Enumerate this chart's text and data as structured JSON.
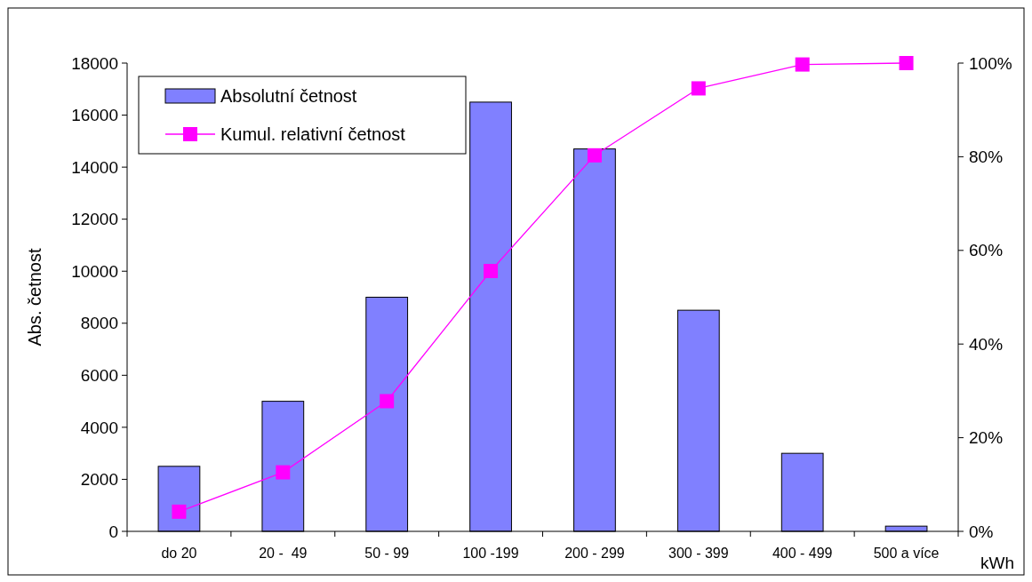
{
  "chart_data": {
    "type": "bar",
    "ylabel": "Abs. četnost",
    "xlabel": "kWh",
    "categories": [
      "do 20",
      "20 -  49",
      "50 - 99",
      "100 -199",
      "200 - 299",
      "300 - 399",
      "400 - 499",
      "500 a více"
    ],
    "series": [
      {
        "name": "Absolutní četnost",
        "color": "#8080ff",
        "values": [
          2500,
          5000,
          9000,
          16500,
          14700,
          8500,
          3000,
          200
        ]
      },
      {
        "name": "Kumul. relativní četnost",
        "type": "line",
        "axis": "y2",
        "color": "#ff00ff",
        "values": [
          4.2,
          12.6,
          27.8,
          55.6,
          80.3,
          94.6,
          99.7,
          100
        ]
      }
    ],
    "ylim": [
      0,
      18000
    ],
    "yticks": [
      0,
      2000,
      4000,
      6000,
      8000,
      10000,
      12000,
      14000,
      16000,
      18000
    ],
    "y2lim": [
      0,
      100
    ],
    "y2ticks": [
      {
        "value": 0,
        "label": "0%"
      },
      {
        "value": 20,
        "label": "20%"
      },
      {
        "value": 40,
        "label": "40%"
      },
      {
        "value": 60,
        "label": "60%"
      },
      {
        "value": 80,
        "label": "80%"
      },
      {
        "value": 100,
        "label": "100%"
      }
    ],
    "legend": "top left",
    "grid": false,
    "marker": "square",
    "line_style": "solid"
  }
}
